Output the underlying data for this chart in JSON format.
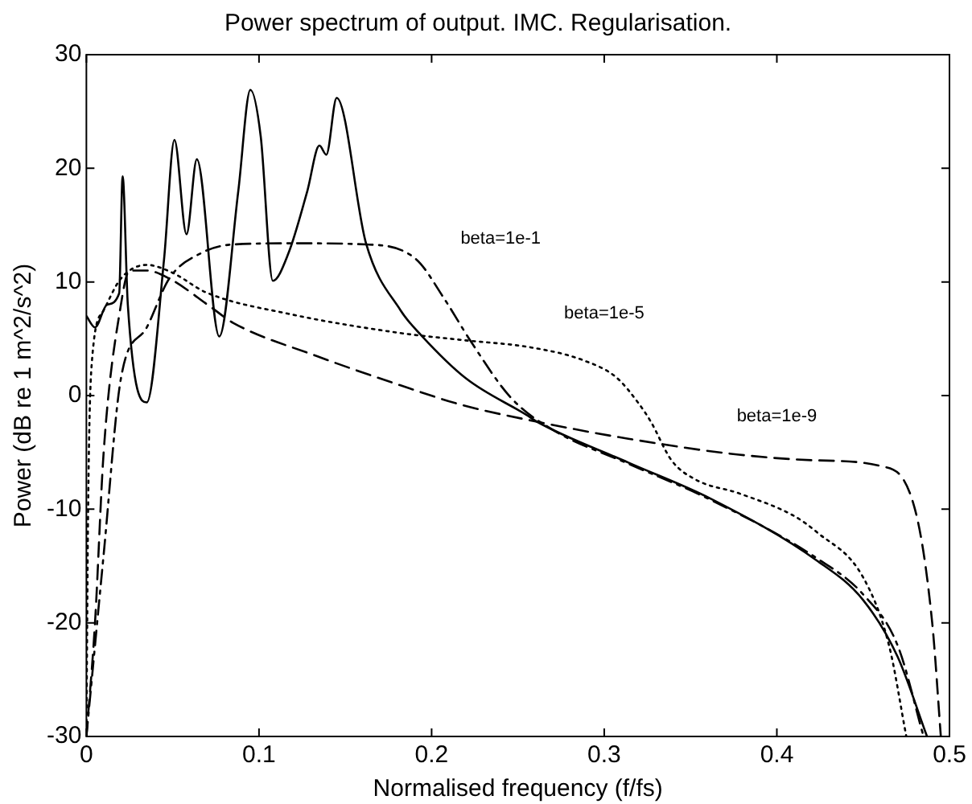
{
  "chart_data": {
    "type": "line",
    "title": "Power spectrum of output. IMC. Regularisation.",
    "xlabel": "Normalised frequency (f/fs)",
    "ylabel": "Power (dB re 1 m^2/s^2)",
    "xlim": [
      0,
      0.5
    ],
    "xticks": [
      0,
      0.1,
      0.2,
      0.3,
      0.4,
      0.5
    ],
    "ylim": [
      -30,
      30
    ],
    "yticks": [
      -30,
      -20,
      -10,
      0,
      10,
      20,
      30
    ],
    "grid": false,
    "legend": false,
    "marker": "none",
    "series": [
      {
        "color": "#000000",
        "line_style": "solid",
        "x": [
          0,
          0.005,
          0.012,
          0.019,
          0.021,
          0.024,
          0.035,
          0.045,
          0.051,
          0.058,
          0.064,
          0.077,
          0.088,
          0.095,
          0.101,
          0.108,
          0.117,
          0.128,
          0.135,
          0.139,
          0.145,
          0.162,
          0.182,
          0.194,
          0.22,
          0.256,
          0.261,
          0.314,
          0.362,
          0.423,
          0.45,
          0.47,
          0.487
        ],
        "values": [
          7,
          6,
          8,
          9,
          19.3,
          8,
          -0.6,
          12,
          22.5,
          14.2,
          20.8,
          5.2,
          18,
          26.9,
          22.8,
          10.1,
          12.5,
          18,
          22,
          21.2,
          26.2,
          13.4,
          7.5,
          5.3,
          1.5,
          -1.8,
          -2.3,
          -5.9,
          -9.1,
          -14.5,
          -18,
          -23,
          -30
        ]
      },
      {
        "color": "#000000",
        "line_style": "dashdot",
        "x": [
          0,
          0.01,
          0.02,
          0.035,
          0.048,
          0.066,
          0.085,
          0.12,
          0.162,
          0.191,
          0.207,
          0.223,
          0.246,
          0.27,
          0.314,
          0.362,
          0.423,
          0.45,
          0.47,
          0.485
        ],
        "values": [
          -30,
          -14,
          1.5,
          6,
          10.3,
          12.5,
          13.3,
          13.4,
          13.3,
          12,
          8.6,
          4.7,
          -0.2,
          -3,
          -6,
          -9.2,
          -14.3,
          -17.5,
          -22,
          -30
        ]
      },
      {
        "color": "#000000",
        "line_style": "dotted",
        "x": [
          0,
          0.001,
          0.003,
          0.01,
          0.02,
          0.035,
          0.05,
          0.069,
          0.117,
          0.182,
          0.217,
          0.259,
          0.288,
          0.307,
          0.32,
          0.327,
          0.339,
          0.353,
          0.378,
          0.41,
          0.423,
          0.45,
          0.465,
          0.475
        ],
        "values": [
          -30,
          -10,
          2.6,
          7.5,
          10.3,
          11.5,
          10.8,
          9.1,
          7.2,
          5.5,
          4.9,
          4.2,
          3.1,
          1.6,
          -0.7,
          -2.3,
          -5.7,
          -7.4,
          -8.6,
          -10.6,
          -12,
          -16,
          -22,
          -30
        ]
      },
      {
        "color": "#000000",
        "line_style": "dashed",
        "x": [
          0,
          0.005,
          0.01,
          0.02,
          0.025,
          0.035,
          0.048,
          0.072,
          0.085,
          0.133,
          0.182,
          0.217,
          0.261,
          0.314,
          0.378,
          0.423,
          0.46,
          0.48,
          0.49,
          0.495
        ],
        "values": [
          -30,
          -20,
          -5,
          8,
          11,
          11,
          10.3,
          7.8,
          6.4,
          3.5,
          0.9,
          -0.8,
          -2.3,
          -3.8,
          -5.2,
          -5.7,
          -6.2,
          -10,
          -20,
          -30
        ]
      }
    ],
    "annotations": [
      "beta=1e-1",
      "beta=1e-5",
      "beta=1e-9"
    ]
  }
}
